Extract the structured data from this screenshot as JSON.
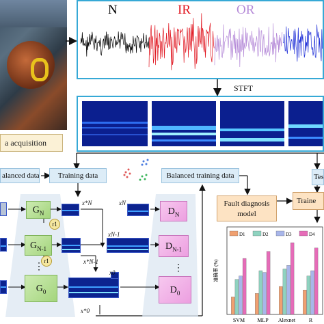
{
  "acquisition": {
    "label": "a acquisition"
  },
  "signals": {
    "labels": [
      "N",
      "IR",
      "OR"
    ],
    "colors": [
      "#000000",
      "#e0141e",
      "#b58ad8",
      "#1b2bd6"
    ]
  },
  "stft": {
    "label": "STFT"
  },
  "flow": {
    "balanced_data_left": "alanced data",
    "training_data": "Training data",
    "balanced_training_data": "Balanced training data",
    "test": "Tes",
    "fault_diagnosis_model": [
      "Fault diagnosis",
      "model"
    ],
    "trained": "Traine"
  },
  "gan": {
    "generators": [
      {
        "base": "G",
        "sub": "N"
      },
      {
        "base": "G",
        "sub": "N-1"
      },
      {
        "base": "G",
        "sub": "0"
      }
    ],
    "discriminators": [
      {
        "base": "D",
        "sub": "N"
      },
      {
        "base": "D",
        "sub": "N-1"
      },
      {
        "base": "D",
        "sub": "0"
      }
    ],
    "r_labels": [
      "r1",
      "r1"
    ],
    "vars": {
      "xn_star": "x*N",
      "xn": "xN",
      "xn1_star": "x*N-1",
      "xn1": "xN-1",
      "x0": "x0",
      "x0_star": "x*0"
    },
    "ellipsis": "⋮"
  },
  "chart_data": {
    "type": "bar",
    "ylabel": "准确率 (%)",
    "categories": [
      "SVM",
      "MLP",
      "Alexnet",
      "R"
    ],
    "series": [
      {
        "name": "D1",
        "color": "#f0a070",
        "values": [
          60,
          62,
          66,
          64
        ]
      },
      {
        "name": "D2",
        "color": "#8fd3c0",
        "values": [
          70,
          75,
          76,
          72
        ]
      },
      {
        "name": "D3",
        "color": "#a8b6ea",
        "values": [
          72,
          74,
          78,
          75
        ]
      },
      {
        "name": "D4",
        "color": "#e66cb8",
        "values": [
          82,
          86,
          91,
          88
        ]
      }
    ],
    "ylim": [
      50,
      100
    ]
  }
}
